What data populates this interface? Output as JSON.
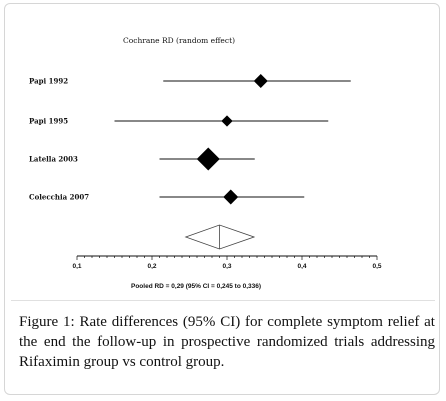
{
  "chart_data": {
    "type": "forest",
    "title": "Cochrane RD (random  effect)",
    "xlim": [
      0.1,
      0.5
    ],
    "ticks": [
      0.1,
      0.2,
      0.3,
      0.4,
      0.5
    ],
    "tick_labels": [
      "0,1",
      "0,2",
      "0,3",
      "0,4",
      "0,5"
    ],
    "studies": [
      {
        "name": "Papi 1992",
        "rd": 0.345,
        "lo": 0.215,
        "hi": 0.465,
        "weight": 0.5
      },
      {
        "name": "Papi 1995",
        "rd": 0.3,
        "lo": 0.15,
        "hi": 0.435,
        "weight": 0.35
      },
      {
        "name": "Latella 2003",
        "rd": 0.275,
        "lo": 0.21,
        "hi": 0.337,
        "weight": 1.0
      },
      {
        "name": "Colecchia 2007",
        "rd": 0.305,
        "lo": 0.21,
        "hi": 0.403,
        "weight": 0.55
      }
    ],
    "pooled": {
      "rd": 0.29,
      "lo": 0.245,
      "hi": 0.336
    },
    "pooled_label": "Pooled RD = 0,29  (95% CI = 0,245 to 0,336)"
  },
  "caption": {
    "label": "Figure 1:",
    "text": " Rate differences (95% CI) for complete symptom relief at the end the follow-up in prospective randomized trials addressing Rifaximin group vs control group."
  }
}
